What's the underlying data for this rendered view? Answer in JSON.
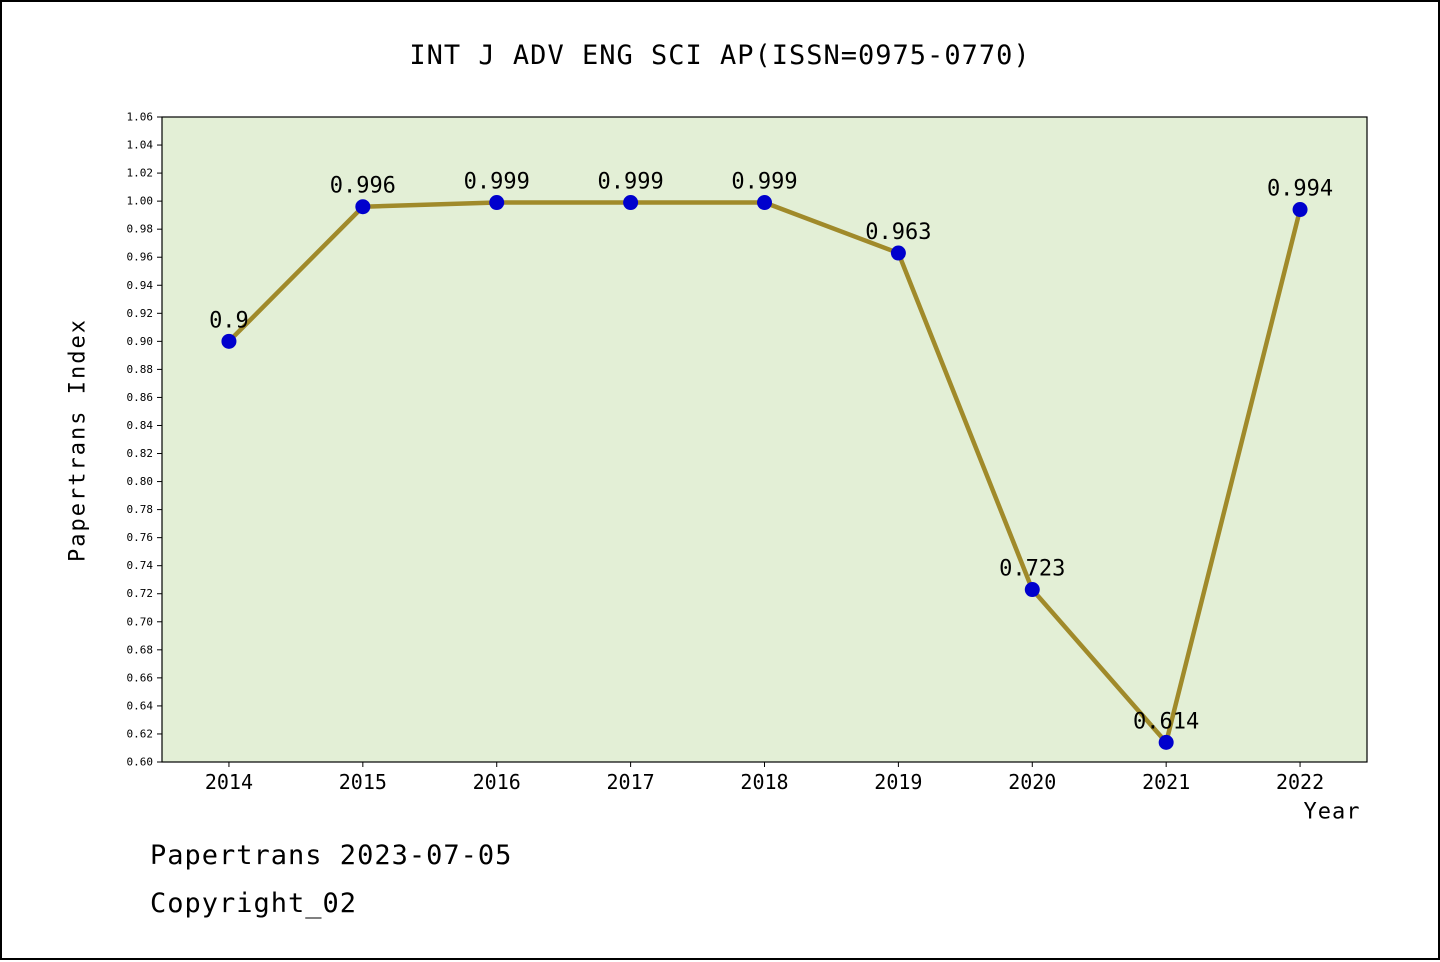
{
  "title": "INT J ADV ENG SCI AP(ISSN=0975-0770)",
  "ylabel": "Papertrans Index",
  "xlabel": "Year",
  "footer": {
    "line1": "Papertrans 2023-07-05",
    "line2": "Copyright_02"
  },
  "chart_data": {
    "type": "line",
    "title": "INT J ADV ENG SCI AP(ISSN=0975-0770)",
    "xlabel": "Year",
    "ylabel": "Papertrans Index",
    "x": [
      2014,
      2015,
      2016,
      2017,
      2018,
      2019,
      2020,
      2021,
      2022
    ],
    "values": [
      0.9,
      0.996,
      0.999,
      0.999,
      0.999,
      0.963,
      0.723,
      0.614,
      0.994
    ],
    "labels": [
      "0.9",
      "0.996",
      "0.999",
      "0.999",
      "0.999",
      "0.963",
      "0.723",
      "0.614",
      "0.994"
    ],
    "ylim": [
      0.6,
      1.06
    ],
    "ytick_step": 0.02,
    "grid": false,
    "legend": "none",
    "line_color": "#a08a2a",
    "marker_color": "#0000cd",
    "plot_bg": "#e3efd6",
    "axis_color": "#000000"
  }
}
